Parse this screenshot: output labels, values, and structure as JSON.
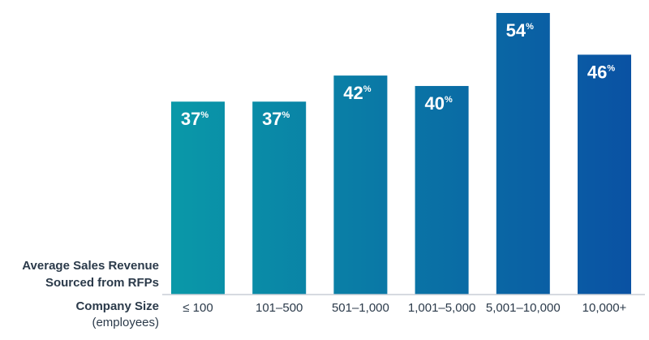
{
  "chart_data": {
    "type": "bar",
    "ylabel_lines": [
      "Average Sales Revenue",
      "Sourced from RFPs"
    ],
    "xlabel_title": "Company Size",
    "xlabel_subtitle": "(employees)",
    "categories": [
      "≤ 100",
      "101–500",
      "501–1,000",
      "1,001–5,000",
      "5,001–10,000",
      "10,000+"
    ],
    "values": [
      37,
      37,
      42,
      40,
      54,
      46
    ],
    "value_unit": "%",
    "ylim": [
      0,
      54
    ],
    "grid": false,
    "legend": "none"
  },
  "colors": {
    "bar_start": "#0a9aa8",
    "bar_end": "#0a4fa3",
    "label_text": "#ffffff",
    "axis_text": "#2b3a4a",
    "baseline": "#c8ced6"
  }
}
